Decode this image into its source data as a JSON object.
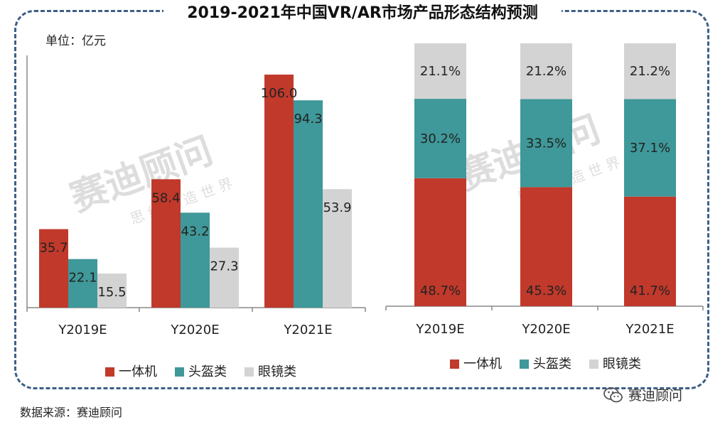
{
  "title": "2019-2021年中国VR/AR市场产品形态结构预测",
  "unit_label": "单位：亿元",
  "source": "数据来源：赛迪顾问",
  "brand": "赛迪顾问",
  "watermark": {
    "main": "赛迪顾问",
    "sub": "思维创造世界"
  },
  "colors": {
    "一体机": "#c0392b",
    "头盔类": "#3f9899",
    "眼镜类": "#d3d3d3",
    "frame": "#3d5f86"
  },
  "chart_data": [
    {
      "type": "bar",
      "categories": [
        "Y2019E",
        "Y2020E",
        "Y2021E"
      ],
      "series": [
        {
          "name": "一体机",
          "values": [
            35.7,
            58.4,
            106.0
          ],
          "labels": [
            "35.7",
            "58.4",
            "106.0"
          ]
        },
        {
          "name": "头盔类",
          "values": [
            22.1,
            43.2,
            94.3
          ],
          "labels": [
            "22.1",
            "43.2",
            "94.3"
          ]
        },
        {
          "name": "眼镜类",
          "values": [
            15.5,
            27.3,
            53.9
          ],
          "labels": [
            "15.5",
            "27.3",
            "53.9"
          ]
        }
      ],
      "ylim": [
        0,
        110
      ],
      "legend": "bottom",
      "grid": false
    },
    {
      "type": "bar",
      "stacked": "percent",
      "categories": [
        "Y2019E",
        "Y2020E",
        "Y2021E"
      ],
      "series": [
        {
          "name": "一体机",
          "values": [
            48.7,
            45.3,
            41.7
          ],
          "labels": [
            "48.7%",
            "45.3%",
            "41.7%"
          ]
        },
        {
          "name": "头盔类",
          "values": [
            30.2,
            33.5,
            37.1
          ],
          "labels": [
            "30.2%",
            "33.5%",
            "37.1%"
          ]
        },
        {
          "name": "眼镜类",
          "values": [
            21.1,
            21.2,
            21.2
          ],
          "labels": [
            "21.1%",
            "21.2%",
            "21.2%"
          ]
        }
      ],
      "ylim": [
        0,
        100
      ],
      "legend": "bottom",
      "grid": false
    }
  ]
}
